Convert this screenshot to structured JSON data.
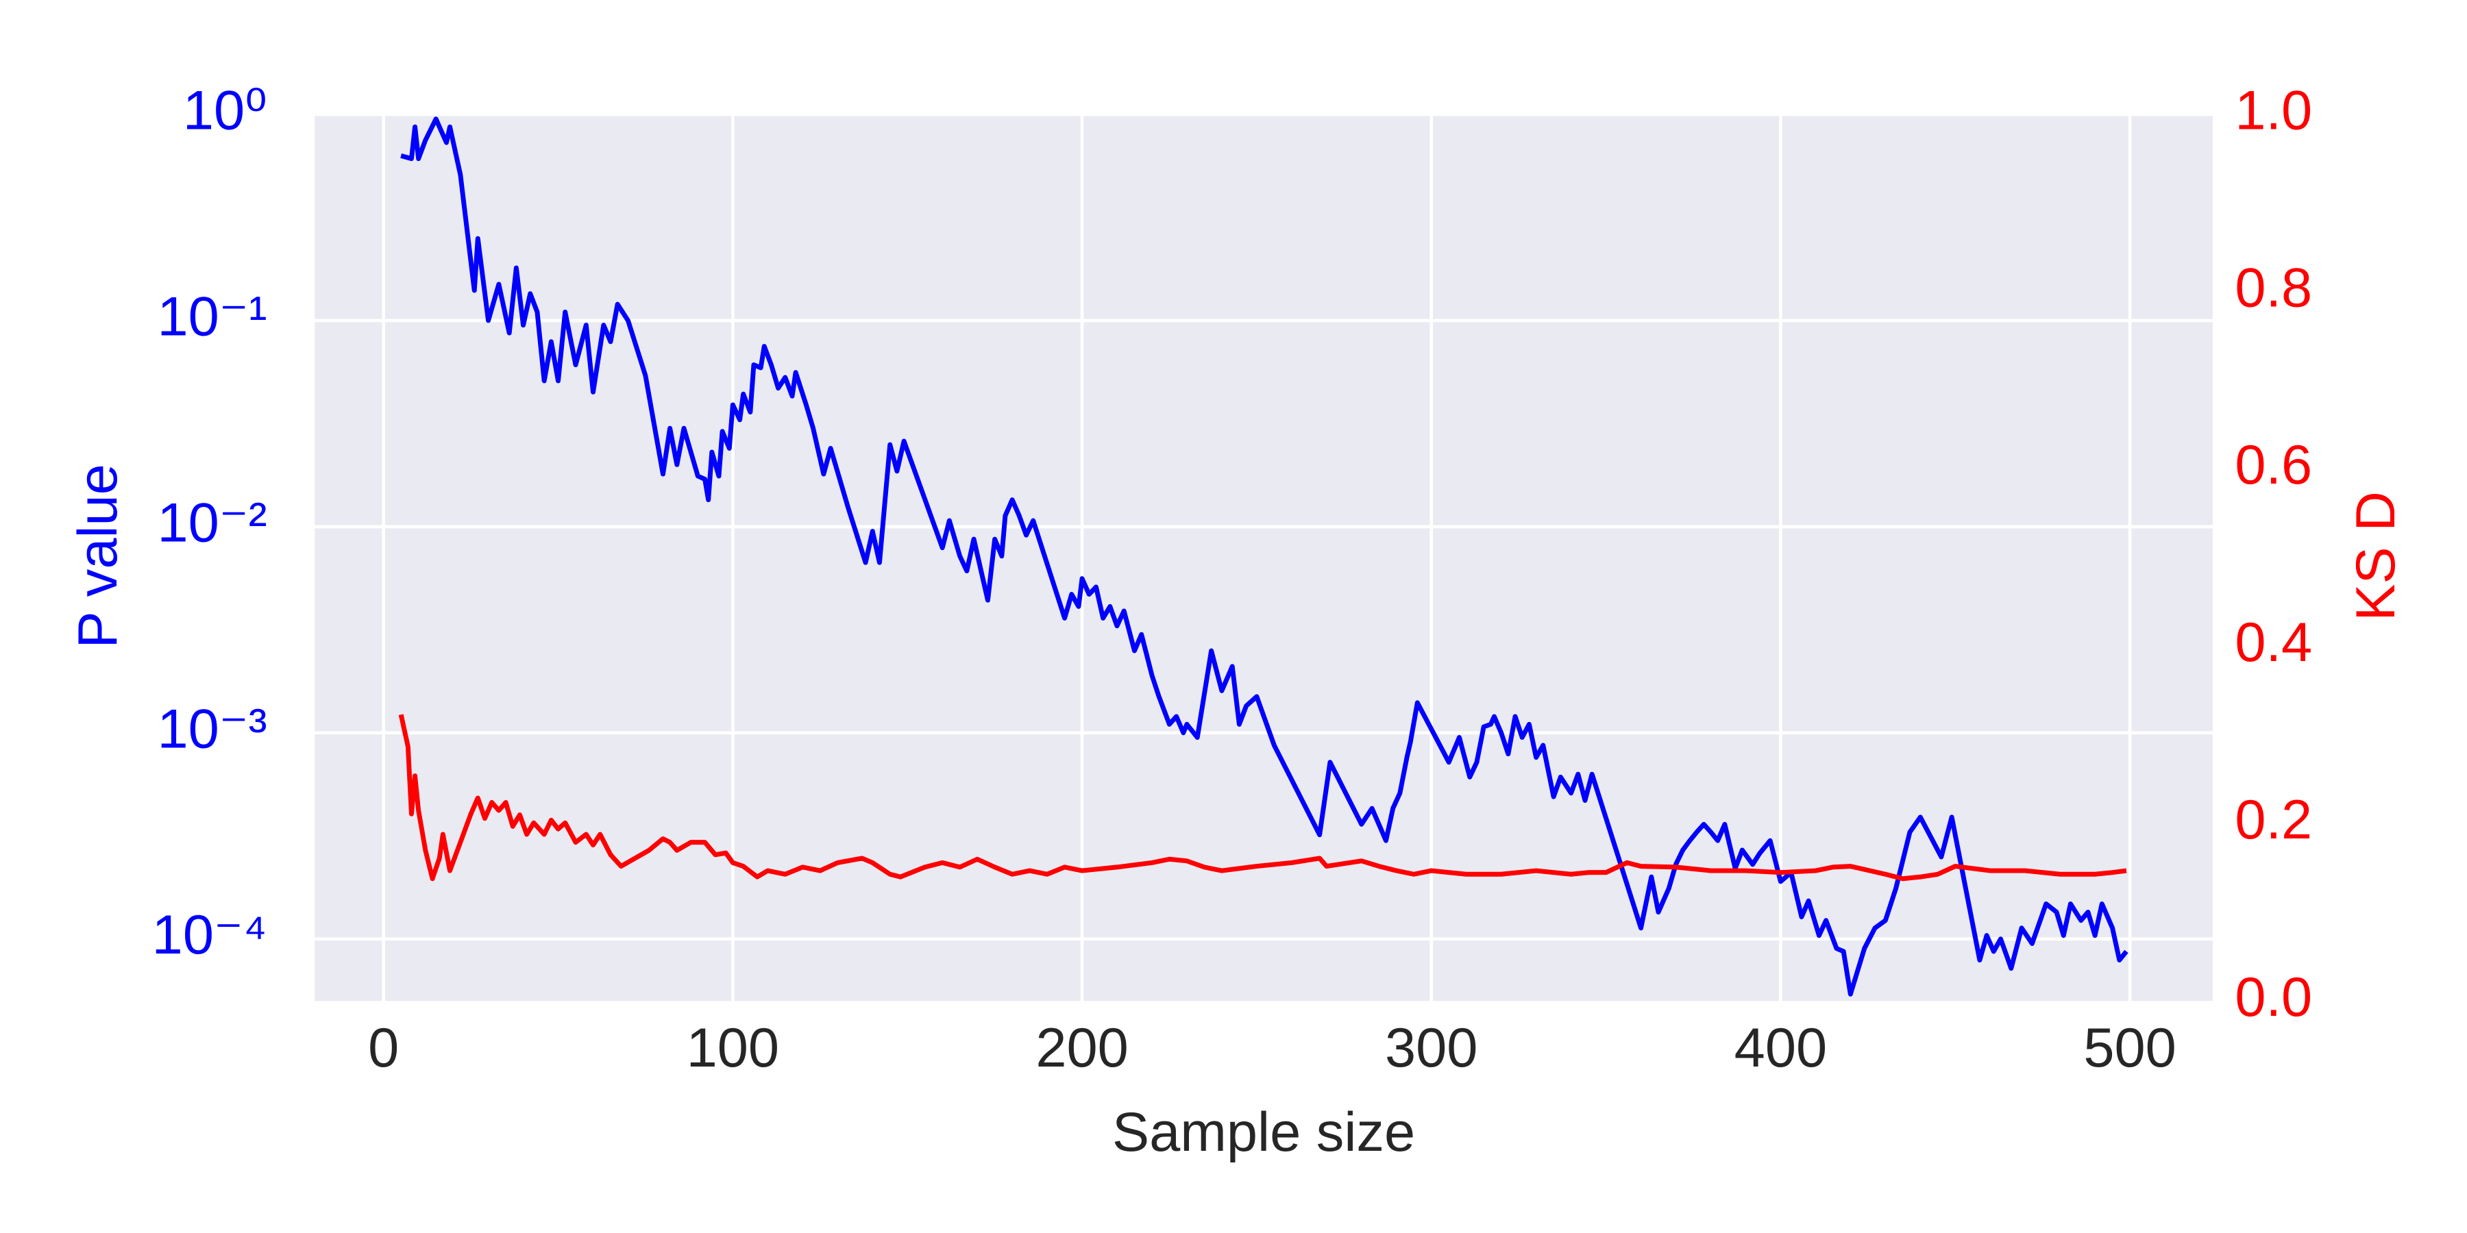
{
  "chart_data": {
    "type": "line",
    "xlabel": "Sample size",
    "ylabel": "P value",
    "y2label": "KS D",
    "xlim": [
      -19.7,
      523.7
    ],
    "xticks": [
      0,
      100,
      200,
      300,
      400,
      500
    ],
    "ylim": [
      5e-05,
      1
    ],
    "yscale": "log",
    "yticks": [
      {
        "value": 0.0001,
        "label": "10⁻⁴"
      },
      {
        "value": 0.001,
        "label": "10⁻³"
      },
      {
        "value": 0.01,
        "label": "10⁻²"
      },
      {
        "value": 0.1,
        "label": "10⁻¹"
      },
      {
        "value": 1,
        "label": "10⁰"
      }
    ],
    "y2lim": [
      0,
      1
    ],
    "y2ticks": [
      {
        "value": 0,
        "label": "0.0"
      },
      0.2,
      0.4,
      0.6,
      0.8,
      {
        "value": 1,
        "label": "1.0"
      }
    ],
    "grid": true,
    "series": [
      {
        "color": "#0000ff",
        "axis": "y",
        "x": [
          5,
          8,
          9,
          10,
          12,
          15,
          18,
          19,
          22,
          26,
          27,
          30,
          33,
          36,
          38,
          40,
          42,
          44,
          46,
          48,
          50,
          52,
          55,
          58,
          60,
          63,
          65,
          67,
          70,
          75,
          80,
          82,
          84,
          86,
          90,
          92,
          93,
          94,
          96,
          97,
          99,
          100,
          102,
          103,
          105,
          106,
          108,
          109,
          111,
          113,
          115,
          117,
          118,
          121,
          123,
          126,
          128,
          133,
          138,
          140,
          142,
          145,
          147,
          149,
          160,
          162,
          165,
          167,
          169,
          173,
          175,
          177,
          178,
          180,
          182,
          184,
          186,
          195,
          197,
          199,
          200,
          202,
          204,
          206,
          208,
          210,
          212,
          215,
          217,
          220,
          222,
          225,
          227,
          229,
          230,
          233,
          237,
          240,
          243,
          245,
          247,
          250,
          255,
          268,
          271,
          280,
          283,
          287,
          289,
          291,
          293,
          294,
          296,
          302,
          305,
          308,
          311,
          313,
          315,
          317,
          318,
          320,
          322,
          324,
          326,
          328,
          330,
          332,
          335,
          337,
          340,
          342,
          344,
          346,
          360,
          363,
          365,
          368,
          370,
          372,
          374,
          376,
          378,
          380,
          382,
          384,
          387,
          389,
          392,
          394,
          397,
          400,
          403,
          406,
          408,
          411,
          413,
          416,
          418,
          420,
          424,
          427,
          430,
          433,
          437,
          440,
          446,
          449,
          457,
          459,
          461,
          463,
          466,
          469,
          472,
          476,
          479,
          481,
          483,
          486,
          488,
          490,
          492,
          495,
          497,
          499
        ],
        "values": [
          0.63,
          0.61,
          0.87,
          0.61,
          0.75,
          0.95,
          0.73,
          0.87,
          0.51,
          0.14,
          0.25,
          0.1,
          0.15,
          0.087,
          0.18,
          0.095,
          0.135,
          0.11,
          0.051,
          0.079,
          0.051,
          0.11,
          0.061,
          0.095,
          0.045,
          0.095,
          0.079,
          0.12,
          0.1,
          0.054,
          0.018,
          0.03,
          0.02,
          0.03,
          0.0176,
          0.017,
          0.0135,
          0.023,
          0.0176,
          0.029,
          0.024,
          0.039,
          0.033,
          0.044,
          0.036,
          0.061,
          0.059,
          0.075,
          0.061,
          0.047,
          0.053,
          0.043,
          0.056,
          0.039,
          0.03,
          0.018,
          0.024,
          0.0124,
          0.0067,
          0.0095,
          0.0067,
          0.025,
          0.0186,
          0.026,
          0.0079,
          0.0107,
          0.0072,
          0.0061,
          0.0087,
          0.0044,
          0.0087,
          0.0072,
          0.0113,
          0.0135,
          0.0113,
          0.0091,
          0.0107,
          0.0036,
          0.0047,
          0.0041,
          0.0056,
          0.0047,
          0.0051,
          0.0036,
          0.0041,
          0.0033,
          0.0039,
          0.0025,
          0.003,
          0.0019,
          0.0015,
          0.0011,
          0.0012,
          0.001,
          0.0011,
          0.00095,
          0.0025,
          0.0016,
          0.0021,
          0.0011,
          0.00135,
          0.0015,
          0.00087,
          0.00032,
          0.00072,
          0.00036,
          0.00043,
          0.0003,
          0.00043,
          0.00051,
          0.00076,
          0.0009,
          0.0014,
          0.0009,
          0.00072,
          0.00095,
          0.00061,
          0.00072,
          0.00107,
          0.0011,
          0.0012,
          0.001,
          0.00079,
          0.0012,
          0.00095,
          0.0011,
          0.00076,
          0.00087,
          0.00049,
          0.00061,
          0.00051,
          0.00063,
          0.00047,
          0.00063,
          0.000113,
          0.0002,
          0.000135,
          0.000176,
          0.00023,
          0.00027,
          0.0003,
          0.00033,
          0.00036,
          0.00033,
          0.0003,
          0.00036,
          0.00022,
          0.00027,
          0.00023,
          0.00026,
          0.0003,
          0.00019,
          0.00021,
          0.000128,
          0.000153,
          0.000104,
          0.000123,
          9e-05,
          8.7e-05,
          5.4e-05,
          9e-05,
          0.000113,
          0.000123,
          0.000176,
          0.00033,
          0.00039,
          0.00025,
          0.00039,
          7.9e-05,
          0.000104,
          8.7e-05,
          0.0001,
          7.2e-05,
          0.000113,
          9.5e-05,
          0.000148,
          0.000135,
          0.000104,
          0.000148,
          0.000123,
          0.000135,
          0.000104,
          0.000148,
          0.000113,
          7.9e-05,
          8.7e-05
        ]
      },
      {
        "color": "#ff0000",
        "axis": "y2",
        "x": [
          5,
          7,
          8,
          9,
          10,
          12,
          14,
          16,
          17,
          19,
          22,
          25,
          27,
          29,
          31,
          33,
          35,
          37,
          39,
          41,
          43,
          46,
          48,
          50,
          52,
          55,
          58,
          60,
          62,
          65,
          68,
          72,
          76,
          80,
          82,
          84,
          88,
          92,
          95,
          98,
          100,
          103,
          107,
          110,
          115,
          120,
          125,
          130,
          137,
          140,
          145,
          148,
          155,
          160,
          165,
          170,
          175,
          180,
          185,
          190,
          195,
          200,
          210,
          220,
          225,
          230,
          235,
          240,
          250,
          260,
          268,
          270,
          280,
          285,
          290,
          295,
          300,
          310,
          320,
          330,
          340,
          345,
          350,
          356,
          360,
          370,
          380,
          390,
          400,
          410,
          415,
          420,
          430,
          435,
          440,
          445,
          450,
          460,
          470,
          480,
          490,
          495,
          499
        ],
        "values": [
          0.323,
          0.287,
          0.211,
          0.254,
          0.215,
          0.17,
          0.138,
          0.161,
          0.188,
          0.147,
          0.179,
          0.211,
          0.229,
          0.206,
          0.224,
          0.215,
          0.224,
          0.197,
          0.21,
          0.188,
          0.201,
          0.188,
          0.204,
          0.194,
          0.201,
          0.179,
          0.188,
          0.176,
          0.188,
          0.165,
          0.152,
          0.161,
          0.17,
          0.183,
          0.179,
          0.17,
          0.179,
          0.179,
          0.165,
          0.167,
          0.156,
          0.152,
          0.14,
          0.147,
          0.143,
          0.151,
          0.147,
          0.156,
          0.161,
          0.156,
          0.143,
          0.14,
          0.151,
          0.156,
          0.151,
          0.16,
          0.151,
          0.143,
          0.147,
          0.143,
          0.151,
          0.147,
          0.151,
          0.156,
          0.16,
          0.158,
          0.151,
          0.147,
          0.152,
          0.156,
          0.161,
          0.152,
          0.158,
          0.152,
          0.147,
          0.143,
          0.147,
          0.143,
          0.143,
          0.147,
          0.143,
          0.145,
          0.145,
          0.156,
          0.152,
          0.151,
          0.147,
          0.147,
          0.145,
          0.147,
          0.151,
          0.152,
          0.143,
          0.138,
          0.14,
          0.143,
          0.152,
          0.147,
          0.147,
          0.143,
          0.143,
          0.145,
          0.147
        ]
      }
    ]
  }
}
